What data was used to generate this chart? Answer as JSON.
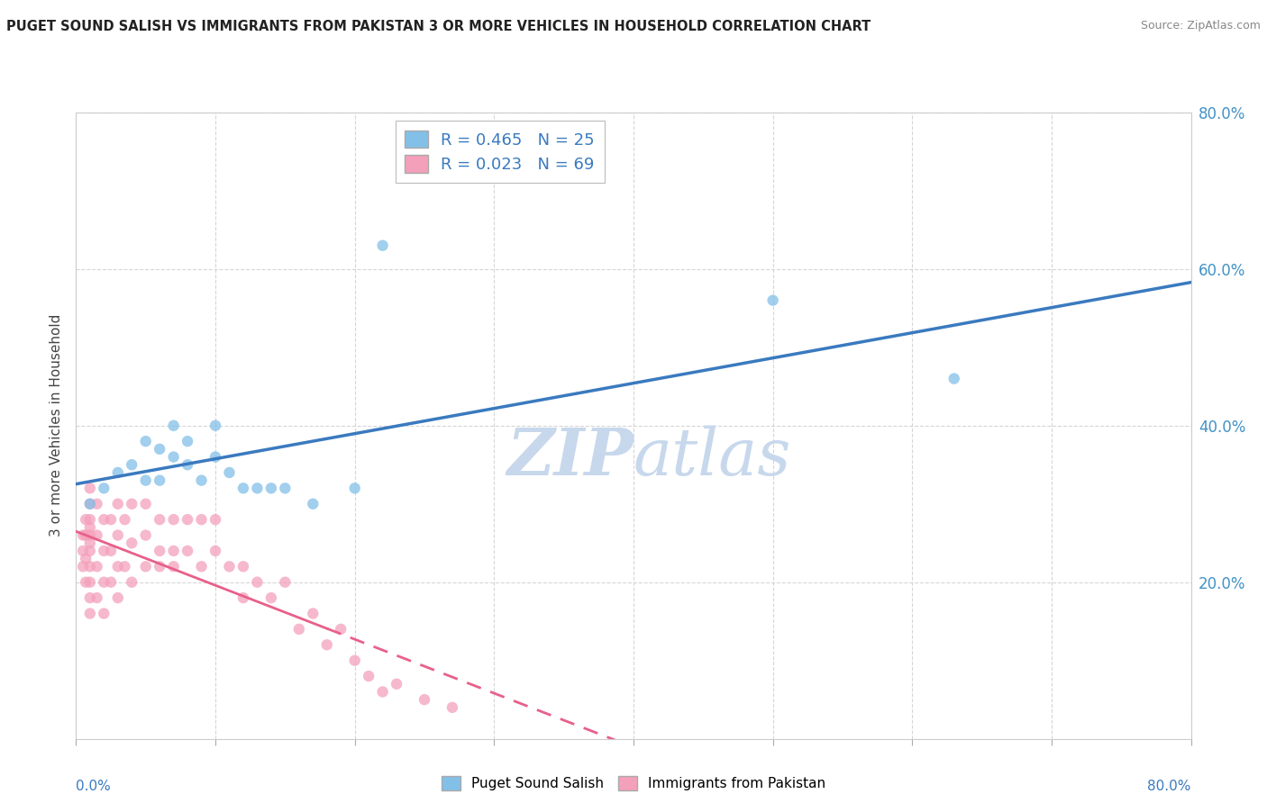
{
  "title": "PUGET SOUND SALISH VS IMMIGRANTS FROM PAKISTAN 3 OR MORE VEHICLES IN HOUSEHOLD CORRELATION CHART",
  "source": "Source: ZipAtlas.com",
  "ylabel": "3 or more Vehicles in Household",
  "legend_label1": "Puget Sound Salish",
  "legend_label2": "Immigrants from Pakistan",
  "r1": 0.465,
  "n1": 25,
  "r2": 0.023,
  "n2": 69,
  "color1": "#82c0e8",
  "color2": "#f4a0bb",
  "trendline1_color": "#3a7abf",
  "trendline2_color": "#e8608a",
  "watermark_color": "#c8d8ec",
  "xmin": 0.0,
  "xmax": 0.8,
  "ymin": 0.0,
  "ymax": 0.8,
  "yticks": [
    0.2,
    0.4,
    0.6,
    0.8
  ],
  "blue_scatter_x": [
    0.01,
    0.02,
    0.03,
    0.04,
    0.05,
    0.05,
    0.06,
    0.06,
    0.07,
    0.07,
    0.08,
    0.08,
    0.09,
    0.1,
    0.1,
    0.11,
    0.12,
    0.13,
    0.14,
    0.15,
    0.17,
    0.2,
    0.22,
    0.5,
    0.63
  ],
  "blue_scatter_y": [
    0.3,
    0.32,
    0.34,
    0.35,
    0.33,
    0.38,
    0.33,
    0.37,
    0.36,
    0.4,
    0.35,
    0.38,
    0.33,
    0.36,
    0.4,
    0.34,
    0.32,
    0.32,
    0.32,
    0.32,
    0.3,
    0.32,
    0.63,
    0.56,
    0.46
  ],
  "pink_scatter_x": [
    0.005,
    0.005,
    0.005,
    0.007,
    0.007,
    0.007,
    0.007,
    0.01,
    0.01,
    0.01,
    0.01,
    0.01,
    0.01,
    0.01,
    0.01,
    0.01,
    0.01,
    0.01,
    0.015,
    0.015,
    0.015,
    0.015,
    0.02,
    0.02,
    0.02,
    0.02,
    0.025,
    0.025,
    0.025,
    0.03,
    0.03,
    0.03,
    0.03,
    0.035,
    0.035,
    0.04,
    0.04,
    0.04,
    0.05,
    0.05,
    0.05,
    0.06,
    0.06,
    0.06,
    0.07,
    0.07,
    0.07,
    0.08,
    0.08,
    0.09,
    0.09,
    0.1,
    0.1,
    0.11,
    0.12,
    0.12,
    0.13,
    0.14,
    0.15,
    0.16,
    0.17,
    0.18,
    0.19,
    0.2,
    0.21,
    0.22,
    0.23,
    0.25,
    0.27
  ],
  "pink_scatter_y": [
    0.22,
    0.24,
    0.26,
    0.2,
    0.23,
    0.26,
    0.28,
    0.16,
    0.18,
    0.2,
    0.22,
    0.24,
    0.26,
    0.28,
    0.3,
    0.32,
    0.25,
    0.27,
    0.18,
    0.22,
    0.26,
    0.3,
    0.16,
    0.2,
    0.24,
    0.28,
    0.2,
    0.24,
    0.28,
    0.18,
    0.22,
    0.26,
    0.3,
    0.22,
    0.28,
    0.2,
    0.25,
    0.3,
    0.22,
    0.26,
    0.3,
    0.24,
    0.28,
    0.22,
    0.24,
    0.28,
    0.22,
    0.24,
    0.28,
    0.22,
    0.28,
    0.24,
    0.28,
    0.22,
    0.18,
    0.22,
    0.2,
    0.18,
    0.2,
    0.14,
    0.16,
    0.12,
    0.14,
    0.1,
    0.08,
    0.06,
    0.07,
    0.05,
    0.04
  ]
}
